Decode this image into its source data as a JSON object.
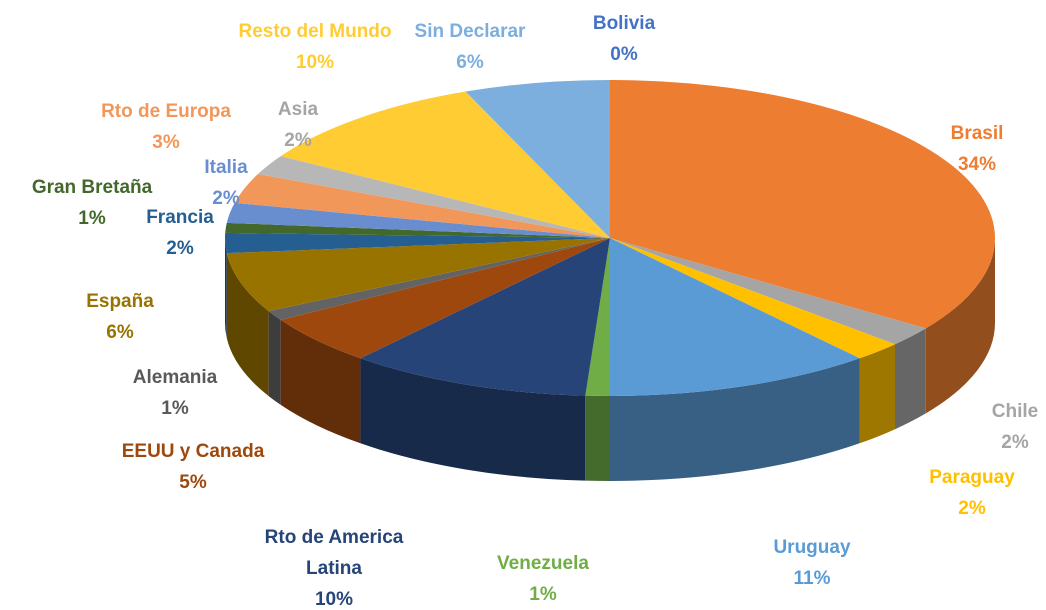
{
  "chart_data": {
    "type": "pie3d",
    "categories": [
      "Bolivia",
      "Brasil",
      "Chile",
      "Paraguay",
      "Uruguay",
      "Venezuela",
      "Rto de America Latina",
      "EEUU y Canada",
      "Alemania",
      "España",
      "Francia",
      "Gran Bretaña",
      "Italia",
      "Rto de Europa",
      "Asia",
      "Resto del Mundo",
      "Sin Declarar"
    ],
    "values": [
      0,
      34,
      2,
      2,
      11,
      1,
      10,
      5,
      1,
      6,
      2,
      1,
      2,
      3,
      2,
      10,
      6
    ],
    "value_labels": [
      "0%",
      "34%",
      "2%",
      "2%",
      "11%",
      "1%",
      "10%",
      "5%",
      "1%",
      "6%",
      "2%",
      "1%",
      "2%",
      "3%",
      "2%",
      "10%",
      "6%"
    ],
    "colors": [
      "#4472c4",
      "#ed7d31",
      "#a5a5a5",
      "#ffc000",
      "#5b9bd5",
      "#70ad47",
      "#264478",
      "#9e480e",
      "#636363",
      "#997300",
      "#255e91",
      "#43682b",
      "#698ed0",
      "#f1975a",
      "#b7b7b7",
      "#ffcd33",
      "#7cafdd"
    ]
  }
}
